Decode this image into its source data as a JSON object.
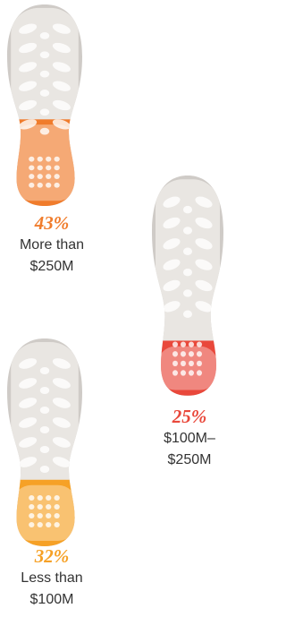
{
  "chart_data": {
    "type": "shoe",
    "categories": [
      [
        "More than",
        "$250M"
      ],
      [
        "$100M–",
        "$250M"
      ],
      [
        "Less than",
        "$100M"
      ]
    ],
    "values": [
      43,
      25,
      32
    ],
    "value_labels": [
      "43%",
      "25%",
      "32%"
    ],
    "colors": [
      "#f07c2c",
      "#e9483b",
      "#f6a126"
    ]
  }
}
